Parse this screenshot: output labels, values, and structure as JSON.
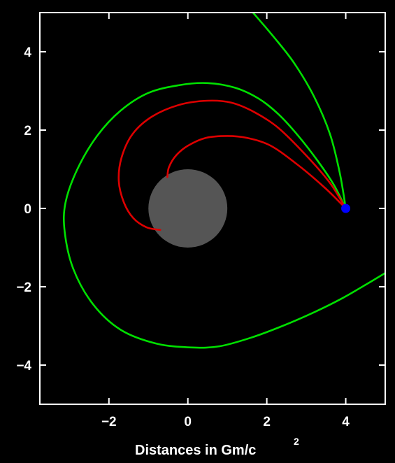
{
  "chart_data": {
    "type": "line",
    "xlabel_main": "Distances in Gm/c",
    "xlabel_superscript": "2",
    "xlim": [
      -3.75,
      5.0
    ],
    "ylim": [
      -5.0,
      5.0
    ],
    "xticks": [
      -2,
      0,
      2,
      4
    ],
    "yticks": [
      -4,
      -2,
      0,
      2,
      4
    ],
    "tick_labels_x": [
      "−2",
      "0",
      "2",
      "4"
    ],
    "tick_labels_y": [
      "4",
      "2",
      "0",
      "−2",
      "−4"
    ],
    "grid": false,
    "black_hole": {
      "center": [
        0,
        0
      ],
      "radius": 1.0,
      "color": "#555555"
    },
    "observer": {
      "point": [
        4.0,
        0.0
      ],
      "color": "#0000ff"
    },
    "series": [
      {
        "color": "#00e000",
        "points": [
          [
            4.0,
            0.0
          ],
          [
            3.85,
            0.9
          ],
          [
            3.6,
            1.9
          ],
          [
            3.2,
            2.85
          ],
          [
            2.7,
            3.7
          ],
          [
            2.2,
            4.35
          ],
          [
            1.65,
            5.0
          ]
        ]
      },
      {
        "color": "#00e000",
        "points": [
          [
            4.0,
            0.0
          ],
          [
            3.7,
            0.6
          ],
          [
            3.3,
            1.2
          ],
          [
            2.8,
            1.85
          ],
          [
            2.3,
            2.4
          ],
          [
            1.8,
            2.8
          ],
          [
            1.2,
            3.08
          ],
          [
            0.5,
            3.2
          ],
          [
            -0.2,
            3.15
          ],
          [
            -1.0,
            2.95
          ],
          [
            -1.7,
            2.5
          ],
          [
            -2.3,
            1.85
          ],
          [
            -2.8,
            1.0
          ],
          [
            -3.1,
            0.15
          ],
          [
            -3.12,
            -0.6
          ],
          [
            -2.9,
            -1.55
          ],
          [
            -2.4,
            -2.45
          ],
          [
            -1.7,
            -3.1
          ],
          [
            -0.8,
            -3.45
          ],
          [
            0.1,
            -3.55
          ],
          [
            0.8,
            -3.52
          ],
          [
            1.6,
            -3.3
          ],
          [
            2.4,
            -3.0
          ],
          [
            3.2,
            -2.65
          ],
          [
            3.9,
            -2.3
          ],
          [
            4.5,
            -1.95
          ],
          [
            5.0,
            -1.65
          ]
        ]
      },
      {
        "color": "#dd0000",
        "points": [
          [
            4.0,
            0.0
          ],
          [
            3.6,
            0.65
          ],
          [
            3.0,
            1.35
          ],
          [
            2.3,
            2.05
          ],
          [
            1.7,
            2.45
          ],
          [
            1.1,
            2.7
          ],
          [
            0.5,
            2.75
          ],
          [
            -0.2,
            2.65
          ],
          [
            -0.9,
            2.35
          ],
          [
            -1.4,
            1.9
          ],
          [
            -1.68,
            1.3
          ],
          [
            -1.75,
            0.7
          ],
          [
            -1.62,
            0.15
          ],
          [
            -1.38,
            -0.25
          ],
          [
            -1.05,
            -0.48
          ],
          [
            -0.7,
            -0.55
          ]
        ]
      },
      {
        "color": "#dd0000",
        "points": [
          [
            4.0,
            0.0
          ],
          [
            3.5,
            0.5
          ],
          [
            2.8,
            1.1
          ],
          [
            2.1,
            1.6
          ],
          [
            1.5,
            1.8
          ],
          [
            1.0,
            1.85
          ],
          [
            0.45,
            1.8
          ],
          [
            0.0,
            1.6
          ],
          [
            -0.3,
            1.35
          ],
          [
            -0.48,
            1.05
          ],
          [
            -0.52,
            0.8
          ]
        ]
      }
    ]
  }
}
